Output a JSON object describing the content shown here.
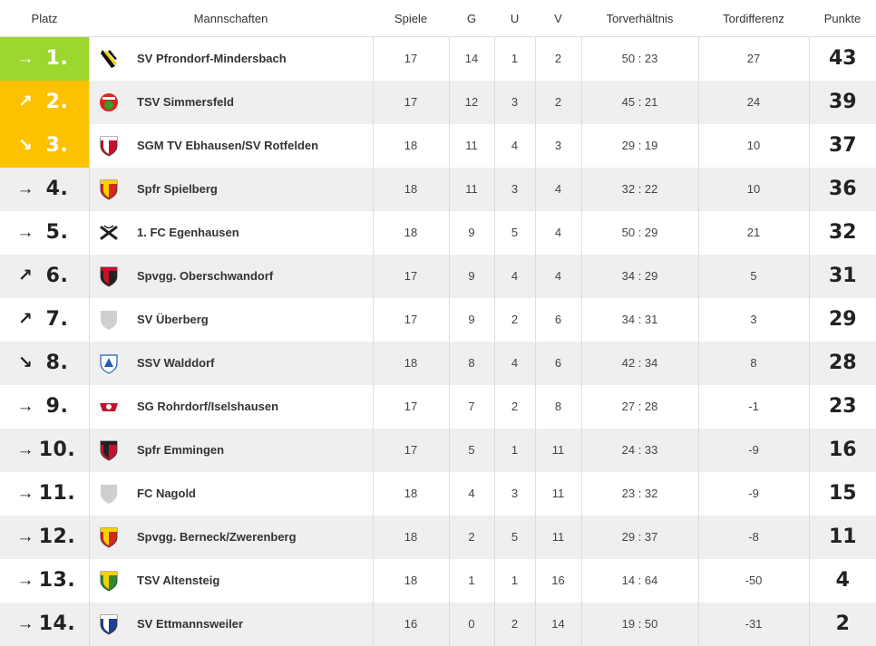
{
  "table": {
    "headers": {
      "platz": "Platz",
      "mannschaften": "Mannschaften",
      "spiele": "Spiele",
      "g": "G",
      "u": "U",
      "v": "V",
      "torverhaeltnis": "Torverhältnis",
      "tordifferenz": "Tordifferenz",
      "punkte": "Punkte"
    },
    "rows": [
      {
        "trend": "→",
        "platz": "1.",
        "team": "SV Pfrondorf-Mindersbach",
        "spiele": "17",
        "g": "14",
        "u": "1",
        "v": "2",
        "tore": "50 : 23",
        "diff": "27",
        "punkte": "43",
        "zone": "promotion",
        "crest_icon": "pfrondorf-crest-icon",
        "crest_colors": [
          "#111111",
          "#f5d300"
        ]
      },
      {
        "trend": "↗",
        "platz": "2.",
        "team": "TSV Simmersfeld",
        "spiele": "17",
        "g": "12",
        "u": "3",
        "v": "2",
        "tore": "45 : 21",
        "diff": "24",
        "punkte": "39",
        "zone": "qualification",
        "crest_icon": "simmersfeld-crest-icon",
        "crest_colors": [
          "#d9261c",
          "#3a9a2a"
        ]
      },
      {
        "trend": "↘",
        "platz": "3.",
        "team": "SGM TV Ebhausen/SV Rotfelden",
        "spiele": "18",
        "g": "11",
        "u": "4",
        "v": "3",
        "tore": "29 : 19",
        "diff": "10",
        "punkte": "37",
        "zone": "qualification",
        "crest_icon": "ebhausen-crest-icon",
        "crest_colors": [
          "#c8102e",
          "#ffffff"
        ]
      },
      {
        "trend": "→",
        "platz": "4.",
        "team": "Spfr Spielberg",
        "spiele": "18",
        "g": "11",
        "u": "3",
        "v": "4",
        "tore": "32 : 22",
        "diff": "10",
        "punkte": "36",
        "zone": "none",
        "crest_icon": "spielberg-crest-icon",
        "crest_colors": [
          "#d9261c",
          "#f5d300"
        ]
      },
      {
        "trend": "→",
        "platz": "5.",
        "team": "1. FC Egenhausen",
        "spiele": "18",
        "g": "9",
        "u": "5",
        "v": "4",
        "tore": "50 : 29",
        "diff": "21",
        "punkte": "32",
        "zone": "none",
        "crest_icon": "egenhausen-crest-icon",
        "crest_colors": [
          "#222222",
          "#ffffff"
        ]
      },
      {
        "trend": "↗",
        "platz": "6.",
        "team": "Spvgg. Oberschwandorf",
        "spiele": "17",
        "g": "9",
        "u": "4",
        "v": "4",
        "tore": "34 : 29",
        "diff": "5",
        "punkte": "31",
        "zone": "none",
        "crest_icon": "oberschwandorf-crest-icon",
        "crest_colors": [
          "#222222",
          "#c8102e"
        ]
      },
      {
        "trend": "↗",
        "platz": "7.",
        "team": "SV Überberg",
        "spiele": "17",
        "g": "9",
        "u": "2",
        "v": "6",
        "tore": "34 : 31",
        "diff": "3",
        "punkte": "29",
        "zone": "none",
        "crest_icon": "placeholder-crest-icon",
        "crest_colors": [
          "#cfcfcf",
          "#e6e6e6"
        ]
      },
      {
        "trend": "↘",
        "platz": "8.",
        "team": "SSV Walddorf",
        "spiele": "18",
        "g": "8",
        "u": "4",
        "v": "6",
        "tore": "42 : 34",
        "diff": "8",
        "punkte": "28",
        "zone": "none",
        "crest_icon": "walddorf-crest-icon",
        "crest_colors": [
          "#1f5fb0",
          "#ffffff"
        ]
      },
      {
        "trend": "→",
        "platz": "9.",
        "team": "SG Rohrdorf/Iselshausen",
        "spiele": "17",
        "g": "7",
        "u": "2",
        "v": "8",
        "tore": "27 : 28",
        "diff": "-1",
        "punkte": "23",
        "zone": "none",
        "crest_icon": "rohrdorf-crest-icon",
        "crest_colors": [
          "#c8102e",
          "#ffffff"
        ]
      },
      {
        "trend": "→",
        "platz": "10.",
        "team": "Spfr Emmingen",
        "spiele": "17",
        "g": "5",
        "u": "1",
        "v": "11",
        "tore": "24 : 33",
        "diff": "-9",
        "punkte": "16",
        "zone": "none",
        "crest_icon": "emmingen-crest-icon",
        "crest_colors": [
          "#c8102e",
          "#222222"
        ]
      },
      {
        "trend": "→",
        "platz": "11.",
        "team": "FC Nagold",
        "spiele": "18",
        "g": "4",
        "u": "3",
        "v": "11",
        "tore": "23 : 32",
        "diff": "-9",
        "punkte": "15",
        "zone": "none",
        "crest_icon": "placeholder-crest-icon",
        "crest_colors": [
          "#cfcfcf",
          "#e6e6e6"
        ]
      },
      {
        "trend": "→",
        "platz": "12.",
        "team": "Spvgg. Berneck/Zwerenberg",
        "spiele": "18",
        "g": "2",
        "u": "5",
        "v": "11",
        "tore": "29 : 37",
        "diff": "-8",
        "punkte": "11",
        "zone": "none",
        "crest_icon": "berneck-crest-icon",
        "crest_colors": [
          "#d9261c",
          "#f5d300"
        ]
      },
      {
        "trend": "→",
        "platz": "13.",
        "team": "TSV Altensteig",
        "spiele": "18",
        "g": "1",
        "u": "1",
        "v": "16",
        "tore": "14 : 64",
        "diff": "-50",
        "punkte": "4",
        "zone": "none",
        "crest_icon": "altensteig-crest-icon",
        "crest_colors": [
          "#2f8a2f",
          "#f5d300"
        ]
      },
      {
        "trend": "→",
        "platz": "14.",
        "team": "SV Ettmannsweiler",
        "spiele": "16",
        "g": "0",
        "u": "2",
        "v": "14",
        "tore": "19 : 50",
        "diff": "-31",
        "punkte": "2",
        "zone": "none",
        "crest_icon": "ettmannsweiler-crest-icon",
        "crest_colors": [
          "#1f3f8f",
          "#ffffff"
        ]
      }
    ]
  },
  "colors": {
    "promotion": "#9cd72e",
    "qualification": "#fcc200",
    "row_alt": "#efefef",
    "grid": "#dddddd"
  }
}
